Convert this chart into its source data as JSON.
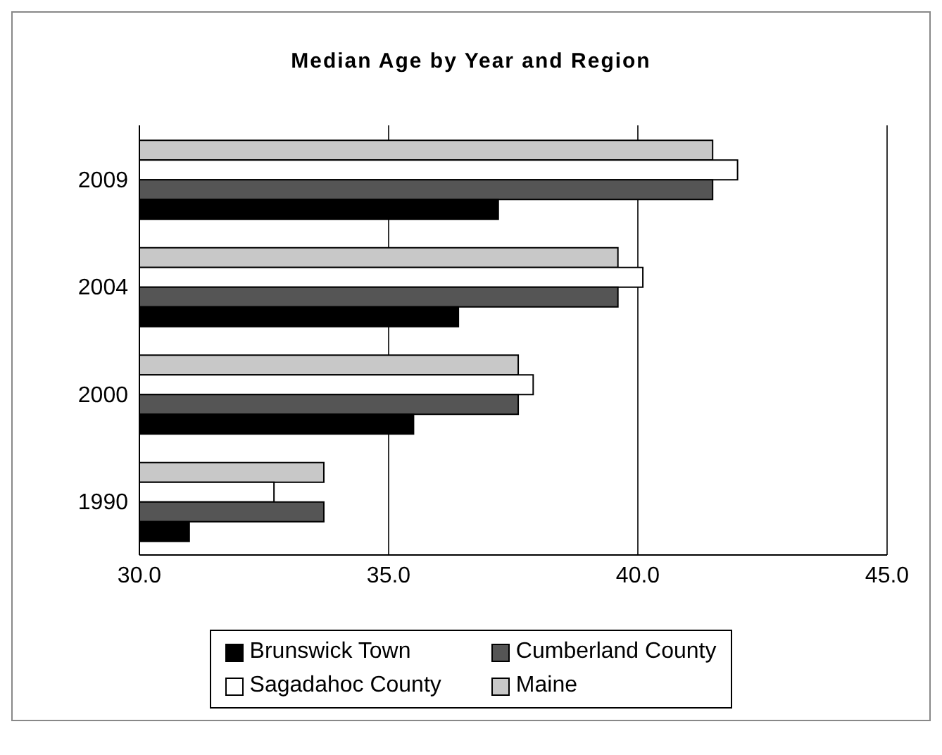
{
  "chart_data": {
    "type": "bar",
    "orientation": "horizontal",
    "title": "Median Age by Year and Region",
    "categories": [
      "2009",
      "2004",
      "2000",
      "1990"
    ],
    "series": [
      {
        "name": "Brunswick Town",
        "color": "#000000",
        "values": [
          37.2,
          36.4,
          35.5,
          31.0
        ]
      },
      {
        "name": "Cumberland County",
        "color": "#555555",
        "values": [
          41.5,
          39.6,
          37.6,
          33.7
        ]
      },
      {
        "name": "Sagadahoc County",
        "color": "#ffffff",
        "values": [
          42.0,
          40.1,
          37.9,
          32.7
        ]
      },
      {
        "name": "Maine",
        "color": "#c8c8c8",
        "values": [
          41.5,
          39.6,
          37.6,
          33.7
        ]
      }
    ],
    "xlim": [
      30,
      45
    ],
    "xticks": [
      {
        "value": 30,
        "label": "30.0"
      },
      {
        "value": 35,
        "label": "35.0"
      },
      {
        "value": 40,
        "label": "40.0"
      },
      {
        "value": 45,
        "label": "45.0"
      }
    ],
    "grid": "x",
    "legend": "bottom"
  }
}
